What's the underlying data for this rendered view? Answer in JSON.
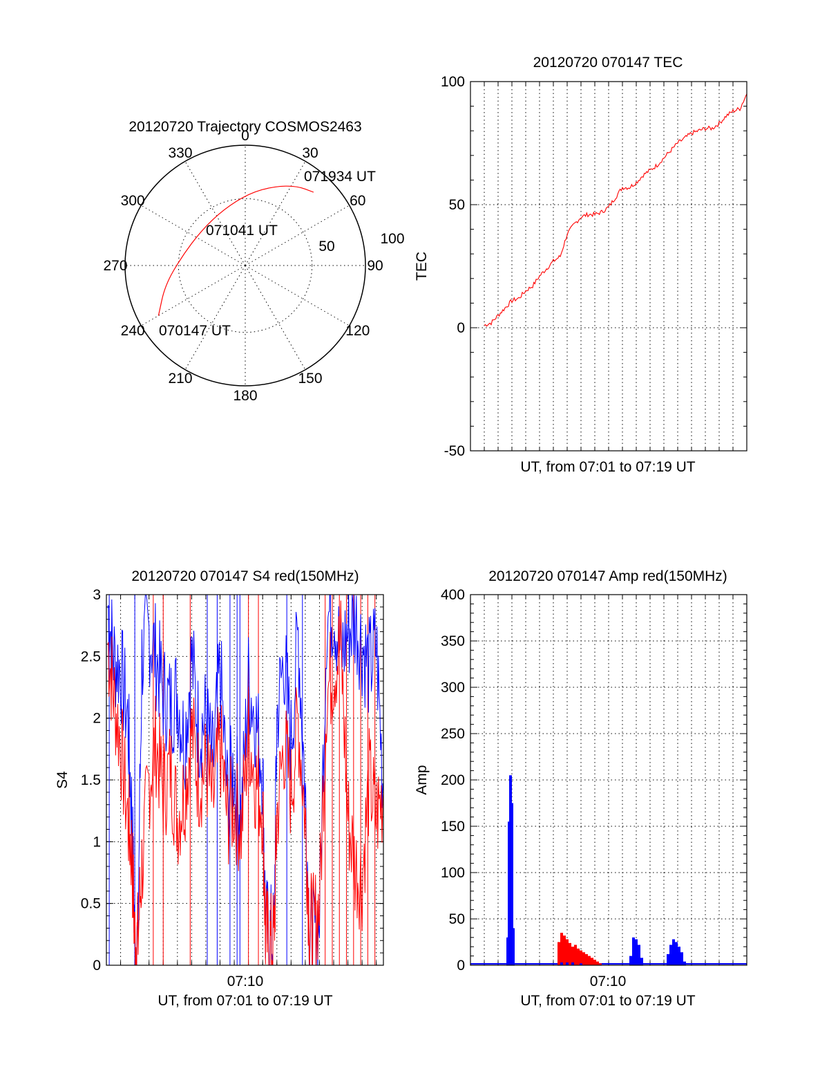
{
  "chart_data": [
    {
      "type": "polar",
      "title": "20120720 Trajectory COSMOS2463",
      "azimuth_labels": [
        "0",
        "30",
        "60",
        "90",
        "120",
        "150",
        "180",
        "210",
        "240",
        "270",
        "300",
        "330"
      ],
      "radial_labels": [
        "50",
        "100"
      ],
      "radial_label_values": [
        50,
        100
      ],
      "rmax": 90,
      "track_labels": {
        "start": "070147 UT",
        "mid": "071041 UT",
        "end": "071934 UT"
      },
      "trajectory": [
        {
          "az": 240,
          "r": 75
        },
        {
          "az": 256,
          "r": 62
        },
        {
          "az": 278,
          "r": 48
        },
        {
          "az": 309,
          "r": 42
        },
        {
          "az": 339,
          "r": 45
        },
        {
          "az": 3,
          "r": 54
        },
        {
          "az": 20,
          "r": 63
        },
        {
          "az": 33,
          "r": 71
        },
        {
          "az": 43,
          "r": 75
        }
      ],
      "colors": {
        "trajectory": "#ff0000"
      }
    },
    {
      "type": "line",
      "title": "20120720 070147 TEC",
      "ylabel": "TEC",
      "xlabel": "UT, from 07:01 to 07:19 UT",
      "ylim": [
        -50,
        100
      ],
      "yticks": [
        "100",
        "50",
        "0",
        "-50"
      ],
      "ytick_values": [
        100,
        50,
        0,
        -50
      ],
      "x_minutes_range": [
        -1,
        19
      ],
      "series": [
        {
          "x_minutes": [
            0,
            0.5,
            1,
            1.5,
            2,
            2.5,
            3,
            3.5,
            4,
            4.5,
            5,
            5.5,
            6,
            6.5,
            7,
            7.5,
            8,
            8.5,
            9,
            9.5,
            10,
            10.5,
            11,
            11.5,
            12,
            12.5,
            13,
            13.5,
            14,
            14.5,
            15,
            15.5,
            16,
            16.5,
            17,
            17.5,
            18,
            18.5,
            19
          ],
          "values": [
            1,
            2,
            5,
            8,
            11,
            12,
            15,
            17,
            21,
            24,
            27,
            29,
            38,
            42,
            45,
            46,
            46,
            47,
            49,
            53,
            57,
            57,
            59,
            62,
            64,
            66,
            69,
            72,
            75,
            77,
            79,
            80,
            81,
            81,
            83,
            86,
            88,
            89,
            95
          ],
          "color": "#ff0000"
        }
      ]
    },
    {
      "type": "line",
      "title": "20120720 070147 S4 red(150MHz)",
      "ylabel": "S4",
      "xlabel": "UT, from 07:01 to 07:19 UT",
      "xtick_label": "07:10",
      "ylim": [
        0,
        3
      ],
      "yticks": [
        "3",
        "2.5",
        "2",
        "1.5",
        "1",
        "0.5",
        "0"
      ],
      "ytick_values": [
        3,
        2.5,
        2,
        1.5,
        1,
        0.5,
        0
      ],
      "x_minutes_range": [
        0,
        19.5
      ],
      "series": [
        {
          "color": "#0000ff",
          "x_minutes": [
            0.1,
            0.5,
            1,
            1.5,
            1.8,
            2,
            2.2,
            2.5,
            3,
            3.5,
            4,
            4.5,
            5,
            5.5,
            6,
            6.5,
            7,
            7.5,
            8,
            8.5,
            9,
            9.5,
            10,
            10.5,
            11,
            11.2,
            11.5,
            11.8,
            12,
            12.5,
            13,
            13.5,
            14,
            14.3,
            14.6,
            15,
            15.5,
            16,
            16.5,
            17,
            17.5,
            18,
            18.5,
            19,
            19.5
          ],
          "values": [
            2.9,
            2.5,
            2.4,
            2.0,
            1.2,
            0.2,
            0.15,
            2.5,
            2.7,
            2.5,
            2.2,
            2.1,
            2.2,
            1.8,
            2.5,
            1.9,
            2.0,
            1.6,
            2.4,
            1.4,
            1.6,
            1.2,
            2.3,
            2.0,
            1.6,
            0.3,
            0.25,
            0.2,
            2.0,
            2.5,
            1.8,
            2.7,
            1.4,
            0.3,
            0.25,
            0.4,
            2.8,
            2.9,
            2.5,
            2.7,
            2.8,
            2.6,
            2.4,
            2.6,
            1.4
          ]
        },
        {
          "color": "#ff0000",
          "x_minutes": [
            0.1,
            0.5,
            1,
            1.5,
            1.8,
            2,
            2.2,
            2.5,
            3,
            3.5,
            4,
            4.5,
            5,
            5.5,
            6,
            6.5,
            7,
            7.5,
            8,
            8.5,
            9,
            9.5,
            10,
            10.5,
            11,
            11.2,
            11.5,
            11.8,
            12,
            12.5,
            13,
            13.5,
            14,
            14.3,
            14.6,
            15,
            15.5,
            16,
            16.5,
            17,
            17.5,
            18,
            18.5,
            19,
            19.5
          ],
          "values": [
            2.6,
            2.2,
            1.8,
            1.2,
            0.9,
            0.2,
            0.18,
            0.8,
            1.5,
            1.8,
            1.4,
            1.6,
            1.2,
            1.4,
            1.9,
            1.5,
            1.6,
            1.3,
            1.8,
            1.2,
            1.3,
            1.1,
            1.9,
            1.5,
            1.3,
            0.25,
            0.15,
            0.2,
            1.2,
            1.8,
            1.4,
            2.0,
            1.2,
            0.35,
            0.3,
            0.5,
            2.2,
            2.4,
            2.6,
            1.2,
            0.8,
            0.7,
            1.5,
            1.2,
            1.4
          ]
        }
      ],
      "spikes_blue_minutes": [
        0.2,
        2.0,
        7.1,
        7.8,
        8.7,
        9.2,
        9.4,
        12.7,
        13.8
      ],
      "spikes_red_minutes": [
        3.3,
        4.0,
        5.9,
        10.0,
        10.7,
        15.4,
        15.9,
        16.4,
        16.9,
        17.4,
        17.9,
        18.4,
        18.9
      ]
    },
    {
      "type": "bar",
      "title": "20120720 070147 Amp red(150MHz)",
      "ylabel": "Amp",
      "xlabel": "UT, from 07:01 to 07:19 UT",
      "xtick_label": "07:10",
      "ylim": [
        0,
        400
      ],
      "yticks": [
        "400",
        "350",
        "300",
        "250",
        "200",
        "150",
        "100",
        "50",
        "0"
      ],
      "ytick_values": [
        400,
        350,
        300,
        250,
        200,
        150,
        100,
        50,
        0
      ],
      "x_minutes_range": [
        -1,
        19
      ],
      "series": [
        {
          "color": "#ff0000",
          "x_minutes": [
            1.7,
            1.8,
            1.9,
            2.0,
            2.1,
            5.4,
            5.6,
            5.8,
            6.0,
            6.2,
            6.4,
            6.6,
            6.8,
            7.0,
            7.2,
            7.4,
            7.6,
            7.8,
            8.0,
            8.2,
            8.4,
            10.6,
            10.8,
            11.0,
            11.2,
            11.4,
            13.3,
            13.5,
            13.7,
            13.9,
            14.1,
            14.3,
            14.5
          ],
          "values": [
            20,
            90,
            80,
            55,
            10,
            25,
            35,
            32,
            28,
            24,
            20,
            22,
            18,
            16,
            14,
            12,
            10,
            8,
            6,
            4,
            2,
            8,
            12,
            10,
            8,
            4,
            6,
            10,
            12,
            10,
            8,
            6,
            2
          ]
        },
        {
          "color": "#0000ff",
          "x_minutes": [
            1.7,
            1.8,
            1.9,
            2.0,
            2.1,
            5.6,
            6.0,
            6.4,
            7.0,
            10.6,
            10.8,
            11.0,
            11.2,
            11.4,
            13.3,
            13.5,
            13.7,
            13.9,
            14.1,
            14.3,
            14.5
          ],
          "values": [
            30,
            155,
            205,
            175,
            40,
            3,
            3,
            3,
            2,
            10,
            30,
            28,
            22,
            8,
            12,
            22,
            28,
            25,
            20,
            14,
            4
          ]
        }
      ]
    }
  ]
}
